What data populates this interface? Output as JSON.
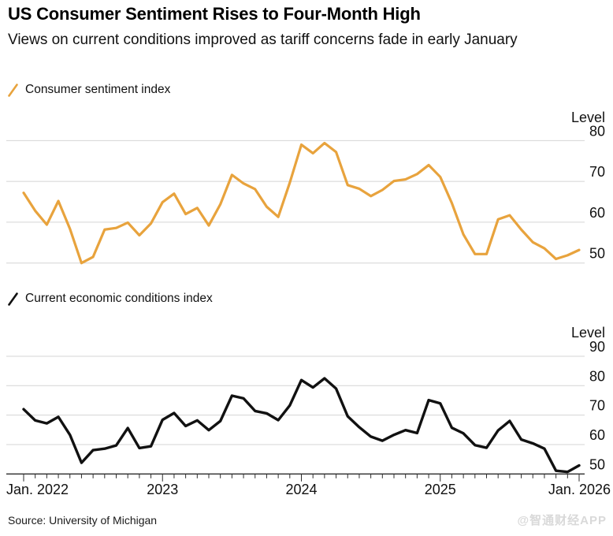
{
  "header": {
    "title": "US Consumer Sentiment Rises to Four-Month High",
    "subtitle": "Views on current conditions improved as tariff concerns fade in early January"
  },
  "footer": {
    "source": "Source: University of Michigan",
    "watermark": "@智通财经APP"
  },
  "colors": {
    "sentiment_line": "#E8A33D",
    "conditions_line": "#111111",
    "gridline": "#d4d4d4",
    "axis": "#2b2b2b",
    "watermark": "#d9d9d9"
  },
  "chart_data": [
    {
      "type": "line",
      "name": "Consumer sentiment index",
      "ylabel": "Level",
      "yticks": [
        80,
        70,
        60,
        50
      ],
      "ylim": [
        47,
        87
      ],
      "legend_position": "top-left",
      "grid": "horizontal",
      "categories": [
        "Jan 2022",
        "Feb 2022",
        "Mar 2022",
        "Apr 2022",
        "May 2022",
        "Jun 2022",
        "Jul 2022",
        "Aug 2022",
        "Sep 2022",
        "Oct 2022",
        "Nov 2022",
        "Dec 2022",
        "Jan 2023",
        "Feb 2023",
        "Mar 2023",
        "Apr 2023",
        "May 2023",
        "Jun 2023",
        "Jul 2023",
        "Aug 2023",
        "Sep 2023",
        "Oct 2023",
        "Nov 2023",
        "Dec 2023",
        "Jan 2024",
        "Feb 2024",
        "Mar 2024",
        "Apr 2024",
        "May 2024",
        "Jun 2024",
        "Jul 2024",
        "Aug 2024",
        "Sep 2024",
        "Oct 2024",
        "Nov 2024",
        "Dec 2024",
        "Jan 2025",
        "Feb 2025",
        "Mar 2025",
        "Apr 2025",
        "May 2025",
        "Jun 2025",
        "Jul 2025",
        "Aug 2025",
        "Sep 2025",
        "Oct 2025",
        "Nov 2025",
        "Dec 2025",
        "Jan 2026"
      ],
      "values": [
        67.2,
        62.8,
        59.4,
        65.2,
        58.4,
        50.0,
        51.5,
        58.2,
        58.6,
        59.9,
        56.8,
        59.7,
        64.9,
        67.0,
        62.0,
        63.5,
        59.2,
        64.4,
        71.6,
        69.5,
        68.1,
        63.8,
        61.3,
        69.7,
        79.0,
        76.9,
        79.4,
        77.2,
        69.1,
        68.2,
        66.4,
        67.9,
        70.1,
        70.5,
        71.8,
        74.0,
        71.1,
        64.7,
        57.0,
        52.2,
        52.2,
        60.7,
        61.7,
        58.2,
        55.1,
        53.6,
        51.0,
        51.9,
        53.2
      ]
    },
    {
      "type": "line",
      "name": "Current economic conditions index",
      "ylabel": "Level",
      "yticks": [
        90,
        80,
        70,
        60,
        50
      ],
      "ylim": [
        46,
        92
      ],
      "legend_position": "top-left",
      "grid": "horizontal",
      "x_tick_labels": [
        "Jan. 2022",
        "2023",
        "2024",
        "2025",
        "Jan. 2026"
      ],
      "categories": [
        "Jan 2022",
        "Feb 2022",
        "Mar 2022",
        "Apr 2022",
        "May 2022",
        "Jun 2022",
        "Jul 2022",
        "Aug 2022",
        "Sep 2022",
        "Oct 2022",
        "Nov 2022",
        "Dec 2022",
        "Jan 2023",
        "Feb 2023",
        "Mar 2023",
        "Apr 2023",
        "May 2023",
        "Jun 2023",
        "Jul 2023",
        "Aug 2023",
        "Sep 2023",
        "Oct 2023",
        "Nov 2023",
        "Dec 2023",
        "Jan 2024",
        "Feb 2024",
        "Mar 2024",
        "Apr 2024",
        "May 2024",
        "Jun 2024",
        "Jul 2024",
        "Aug 2024",
        "Sep 2024",
        "Oct 2024",
        "Nov 2024",
        "Dec 2024",
        "Jan 2025",
        "Feb 2025",
        "Mar 2025",
        "Apr 2025",
        "May 2025",
        "Jun 2025",
        "Jul 2025",
        "Aug 2025",
        "Sep 2025",
        "Oct 2025",
        "Nov 2025",
        "Dec 2025",
        "Jan 2026"
      ],
      "values": [
        72.0,
        68.2,
        67.2,
        69.4,
        63.3,
        53.8,
        58.1,
        58.6,
        59.7,
        65.6,
        58.8,
        59.4,
        68.4,
        70.7,
        66.3,
        68.2,
        64.9,
        68.0,
        76.6,
        75.7,
        71.4,
        70.6,
        68.3,
        73.3,
        81.9,
        79.4,
        82.5,
        79.0,
        69.6,
        65.9,
        62.7,
        61.3,
        63.3,
        64.9,
        63.9,
        75.1,
        74.0,
        65.7,
        63.8,
        59.8,
        58.9,
        64.8,
        68.0,
        61.7,
        60.4,
        58.6,
        51.1,
        50.7,
        52.9
      ]
    }
  ]
}
